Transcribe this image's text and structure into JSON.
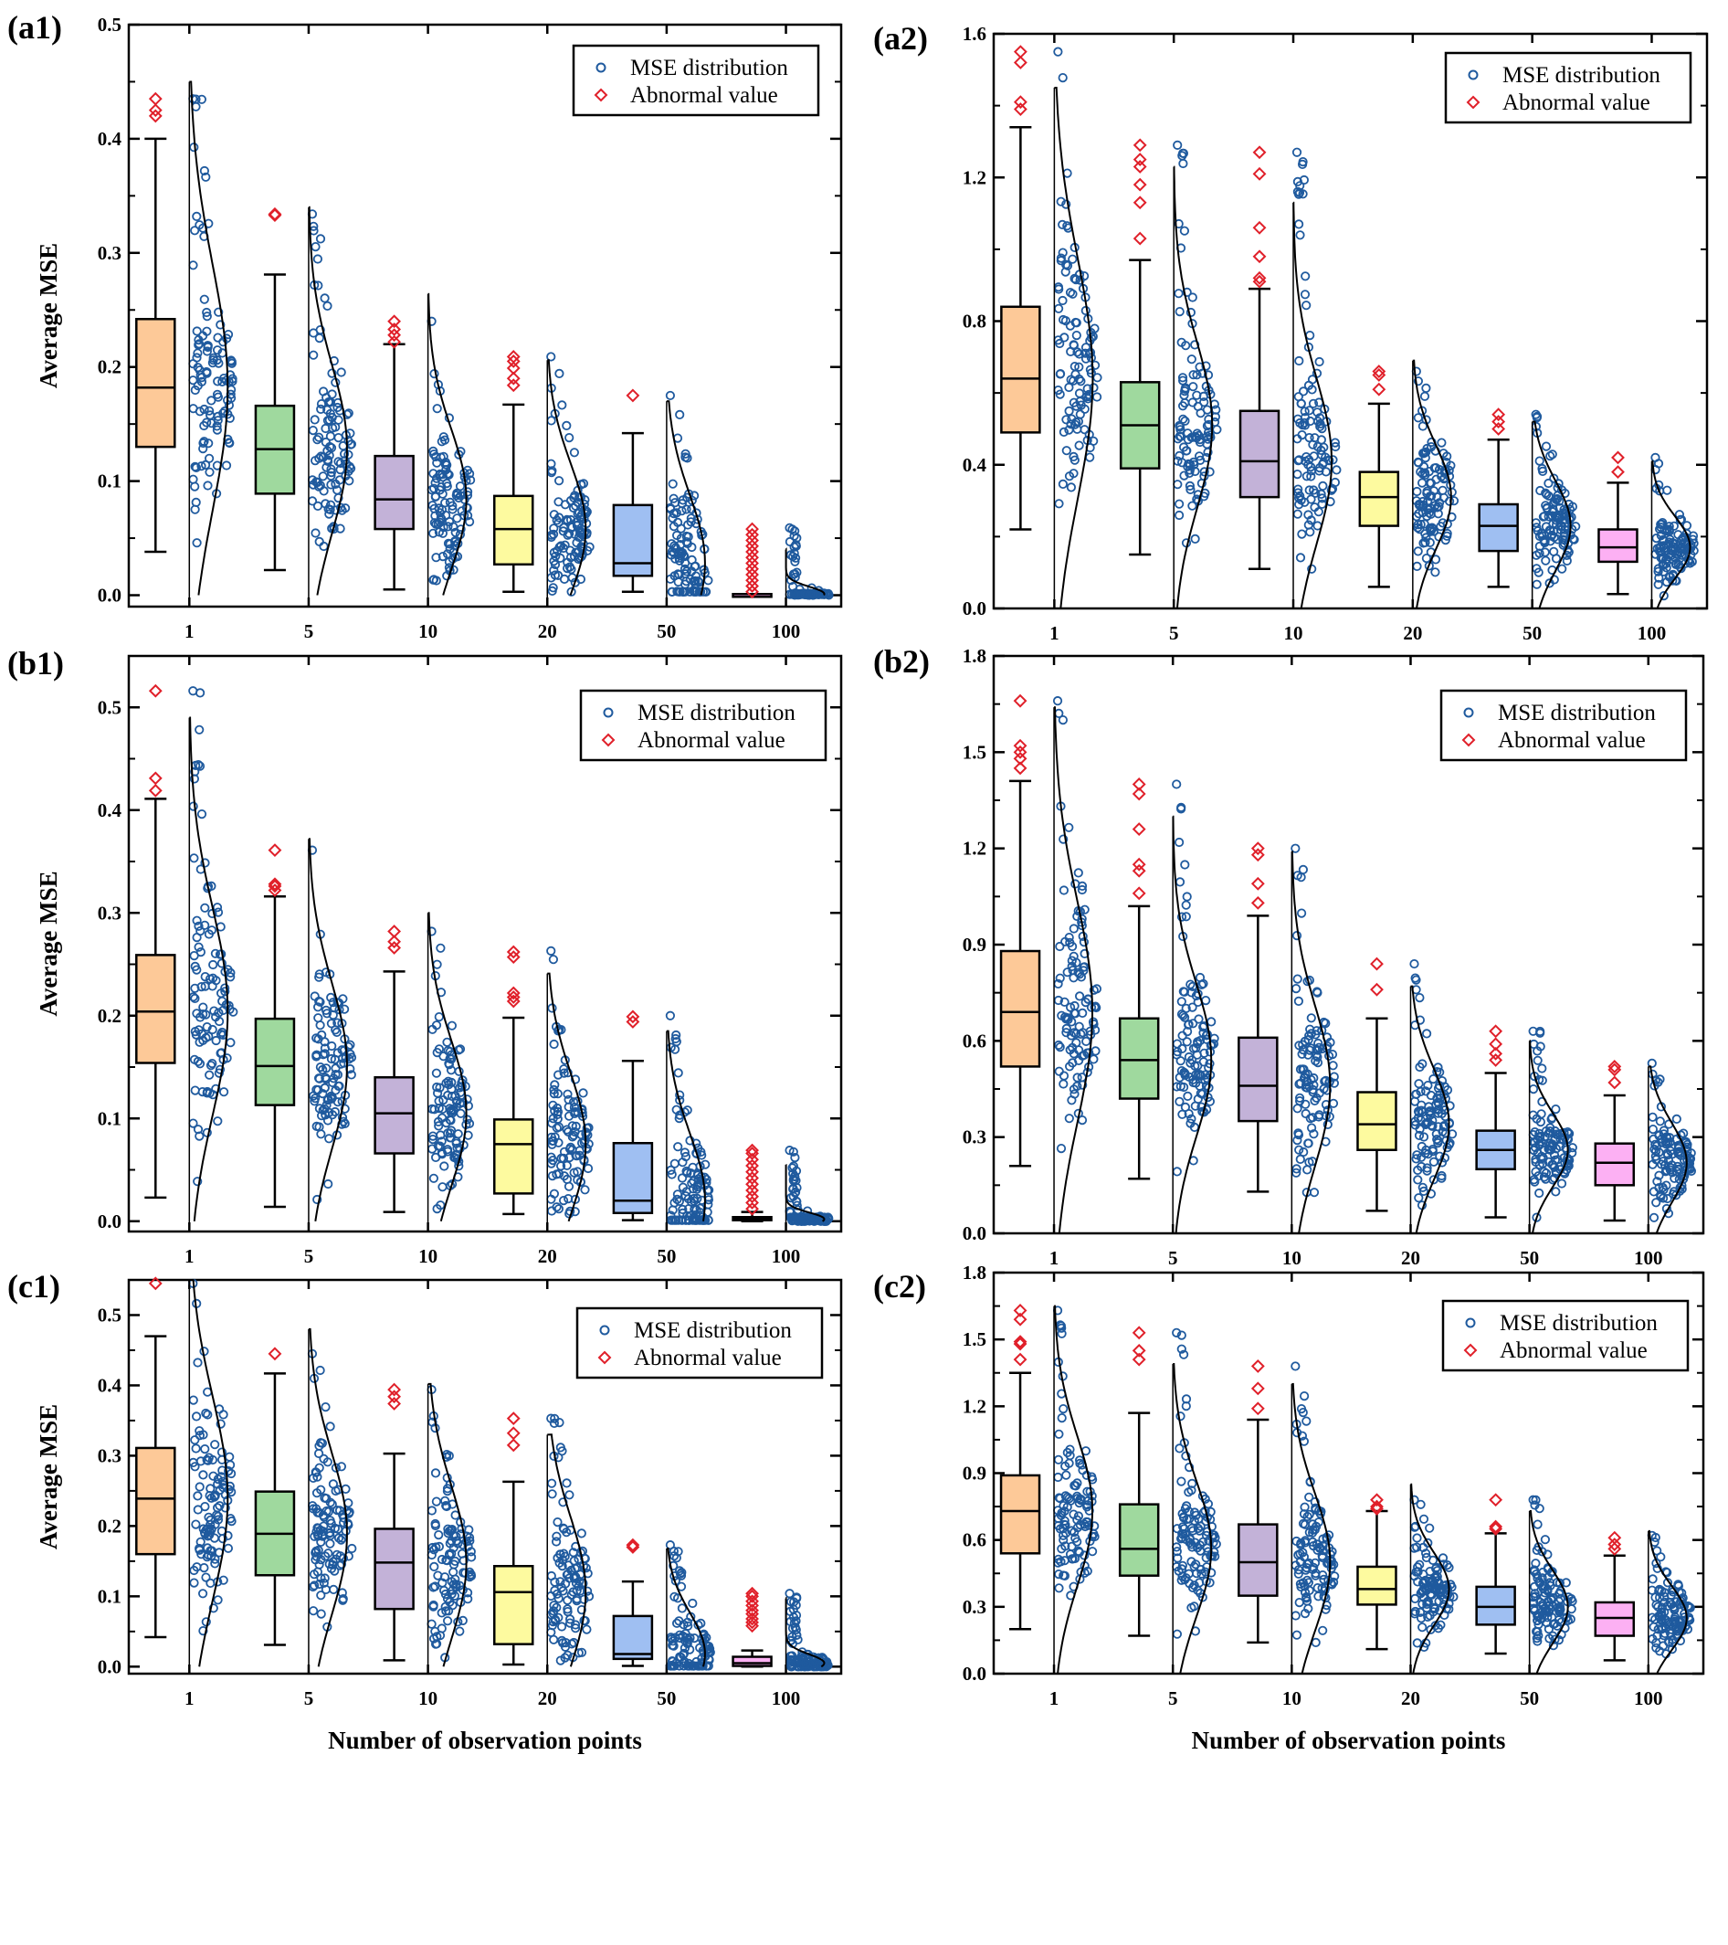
{
  "figure": {
    "shared_xlabel": "Number of observation points",
    "shared_ylabel": "Average MSE"
  },
  "legend": {
    "entries": [
      {
        "label": "MSE distribution",
        "marker": "open-circle",
        "color": "#1f5a9e"
      },
      {
        "label": "Abnormal value",
        "marker": "open-diamond",
        "color": "#e0202a"
      }
    ]
  },
  "colors": {
    "box_fills": [
      "#fdc998",
      "#9fd99e",
      "#c3b2d8",
      "#fdfa9f",
      "#9fbff2",
      "#fcb0f3"
    ],
    "points": "#1f5a9e",
    "outliers": "#e0202a",
    "curve": "#000000"
  },
  "chart_data": [
    {
      "id": "a1",
      "panel_label": "(a1)",
      "type": "box",
      "title": "",
      "xlabel": "",
      "ylabel": "Average MSE",
      "categories": [
        "1",
        "5",
        "10",
        "20",
        "50",
        "100"
      ],
      "ylim": [
        -0.01,
        0.5
      ],
      "yticks": [
        0.0,
        0.1,
        0.2,
        0.3,
        0.4,
        0.5
      ],
      "ytick_labels": [
        "0.0",
        "0.1",
        "0.2",
        "0.3",
        "0.4",
        "0.5"
      ],
      "minor_yticks": true,
      "legend_position": "top-right",
      "series": [
        {
          "category": "1",
          "whisker_low": 0.038,
          "q1": 0.13,
          "median": 0.182,
          "q3": 0.242,
          "whisker_high": 0.4,
          "outliers": [
            0.42,
            0.425,
            0.435
          ],
          "dist_range": [
            0.037,
            0.435
          ],
          "curve_top": 0.45
        },
        {
          "category": "5",
          "whisker_low": 0.022,
          "q1": 0.089,
          "median": 0.128,
          "q3": 0.166,
          "whisker_high": 0.281,
          "outliers": [
            0.333,
            0.334
          ],
          "dist_range": [
            0.022,
            0.334
          ],
          "curve_top": 0.34
        },
        {
          "category": "10",
          "whisker_low": 0.005,
          "q1": 0.058,
          "median": 0.084,
          "q3": 0.122,
          "whisker_high": 0.22,
          "outliers": [
            0.222,
            0.228,
            0.233,
            0.24
          ],
          "dist_range": [
            0.005,
            0.24
          ],
          "curve_top": 0.264
        },
        {
          "category": "20",
          "whisker_low": 0.003,
          "q1": 0.027,
          "median": 0.058,
          "q3": 0.087,
          "whisker_high": 0.167,
          "outliers": [
            0.184,
            0.19,
            0.199,
            0.205,
            0.209
          ],
          "dist_range": [
            0.003,
            0.209
          ],
          "curve_top": 0.206
        },
        {
          "category": "50",
          "whisker_low": 0.003,
          "q1": 0.017,
          "median": 0.028,
          "q3": 0.079,
          "whisker_high": 0.142,
          "outliers": [
            0.175
          ],
          "dist_range": [
            0.003,
            0.175
          ],
          "curve_top": 0.17
        },
        {
          "category": "100",
          "whisker_low": 0.0,
          "q1": 0.0,
          "median": 0.001,
          "q3": 0.001,
          "whisker_high": 0.001,
          "outliers": [
            0.003,
            0.008,
            0.013,
            0.018,
            0.023,
            0.028,
            0.033,
            0.038,
            0.043,
            0.048,
            0.053,
            0.058
          ],
          "dist_range": [
            0.0,
            0.059
          ],
          "curve_top": 0.04
        }
      ]
    },
    {
      "id": "a2",
      "panel_label": "(a2)",
      "type": "box",
      "title": "",
      "xlabel": "",
      "ylabel": "",
      "categories": [
        "1",
        "5",
        "10",
        "20",
        "50",
        "100"
      ],
      "ylim": [
        0.0,
        1.6
      ],
      "yticks": [
        0.0,
        0.4,
        0.8,
        1.2,
        1.6
      ],
      "ytick_labels": [
        "0.0",
        "0.4",
        "0.8",
        "1.2",
        "1.6"
      ],
      "minor_yticks": true,
      "legend_position": "top-right",
      "series": [
        {
          "category": "1",
          "whisker_low": 0.22,
          "q1": 0.49,
          "median": 0.64,
          "q3": 0.84,
          "whisker_high": 1.34,
          "outliers": [
            1.39,
            1.41,
            1.52,
            1.55
          ],
          "dist_range": [
            0.22,
            1.55
          ],
          "curve_top": 1.45
        },
        {
          "category": "5",
          "whisker_low": 0.15,
          "q1": 0.39,
          "median": 0.51,
          "q3": 0.63,
          "whisker_high": 0.97,
          "outliers": [
            1.03,
            1.13,
            1.18,
            1.23,
            1.25,
            1.29
          ],
          "dist_range": [
            0.15,
            1.29
          ],
          "curve_top": 1.23
        },
        {
          "category": "10",
          "whisker_low": 0.11,
          "q1": 0.31,
          "median": 0.41,
          "q3": 0.55,
          "whisker_high": 0.89,
          "outliers": [
            0.91,
            0.92,
            0.98,
            1.06,
            1.21,
            1.27
          ],
          "dist_range": [
            0.11,
            1.27
          ],
          "curve_top": 1.13
        },
        {
          "category": "20",
          "whisker_low": 0.06,
          "q1": 0.23,
          "median": 0.31,
          "q3": 0.38,
          "whisker_high": 0.57,
          "outliers": [
            0.61,
            0.65,
            0.66
          ],
          "dist_range": [
            0.06,
            0.66
          ],
          "curve_top": 0.69
        },
        {
          "category": "50",
          "whisker_low": 0.06,
          "q1": 0.16,
          "median": 0.23,
          "q3": 0.29,
          "whisker_high": 0.47,
          "outliers": [
            0.5,
            0.52,
            0.54
          ],
          "dist_range": [
            0.06,
            0.54
          ],
          "curve_top": 0.52
        },
        {
          "category": "100",
          "whisker_low": 0.04,
          "q1": 0.13,
          "median": 0.17,
          "q3": 0.22,
          "whisker_high": 0.35,
          "outliers": [
            0.38,
            0.42
          ],
          "dist_range": [
            0.03,
            0.42
          ],
          "curve_top": 0.41
        }
      ]
    },
    {
      "id": "b1",
      "panel_label": "(b1)",
      "type": "box",
      "title": "",
      "xlabel": "",
      "ylabel": "Average MSE",
      "categories": [
        "1",
        "5",
        "10",
        "20",
        "50",
        "100"
      ],
      "ylim": [
        -0.01,
        0.55
      ],
      "yticks": [
        0.0,
        0.1,
        0.2,
        0.3,
        0.4,
        0.5
      ],
      "ytick_labels": [
        "0.0",
        "0.1",
        "0.2",
        "0.3",
        "0.4",
        "0.5"
      ],
      "minor_yticks": true,
      "legend_position": "top-right",
      "series": [
        {
          "category": "1",
          "whisker_low": 0.023,
          "q1": 0.154,
          "median": 0.204,
          "q3": 0.259,
          "whisker_high": 0.411,
          "outliers": [
            0.419,
            0.431,
            0.516
          ],
          "dist_range": [
            0.023,
            0.516
          ],
          "curve_top": 0.49
        },
        {
          "category": "5",
          "whisker_low": 0.014,
          "q1": 0.113,
          "median": 0.151,
          "q3": 0.197,
          "whisker_high": 0.316,
          "outliers": [
            0.322,
            0.326,
            0.328,
            0.361
          ],
          "dist_range": [
            0.014,
            0.361
          ],
          "curve_top": 0.372
        },
        {
          "category": "10",
          "whisker_low": 0.009,
          "q1": 0.066,
          "median": 0.105,
          "q3": 0.14,
          "whisker_high": 0.243,
          "outliers": [
            0.266,
            0.272,
            0.282
          ],
          "dist_range": [
            0.009,
            0.282
          ],
          "curve_top": 0.3
        },
        {
          "category": "20",
          "whisker_low": 0.007,
          "q1": 0.027,
          "median": 0.075,
          "q3": 0.099,
          "whisker_high": 0.198,
          "outliers": [
            0.214,
            0.218,
            0.222,
            0.257,
            0.262
          ],
          "dist_range": [
            0.007,
            0.263
          ],
          "curve_top": 0.241
        },
        {
          "category": "50",
          "whisker_low": 0.001,
          "q1": 0.008,
          "median": 0.02,
          "q3": 0.076,
          "whisker_high": 0.156,
          "outliers": [
            0.194,
            0.199
          ],
          "dist_range": [
            0.001,
            0.2
          ],
          "curve_top": 0.185
        },
        {
          "category": "100",
          "whisker_low": 0.0,
          "q1": 0.001,
          "median": 0.002,
          "q3": 0.004,
          "whisker_high": 0.009,
          "outliers": [
            0.012,
            0.018,
            0.024,
            0.03,
            0.036,
            0.042,
            0.048,
            0.054,
            0.06,
            0.066,
            0.069
          ],
          "dist_range": [
            0.0,
            0.069
          ],
          "curve_top": 0.055
        }
      ]
    },
    {
      "id": "b2",
      "panel_label": "(b2)",
      "type": "box",
      "title": "",
      "xlabel": "",
      "ylabel": "",
      "categories": [
        "1",
        "5",
        "10",
        "20",
        "50",
        "100"
      ],
      "ylim": [
        0.0,
        1.8
      ],
      "yticks": [
        0.0,
        0.3,
        0.6,
        0.9,
        1.2,
        1.5,
        1.8
      ],
      "ytick_labels": [
        "0.0",
        "0.3",
        "0.6",
        "0.9",
        "1.2",
        "1.5",
        "1.8"
      ],
      "minor_yticks": true,
      "legend_position": "top-right",
      "series": [
        {
          "category": "1",
          "whisker_low": 0.21,
          "q1": 0.52,
          "median": 0.69,
          "q3": 0.88,
          "whisker_high": 1.41,
          "outliers": [
            1.45,
            1.48,
            1.5,
            1.52,
            1.66
          ],
          "dist_range": [
            0.21,
            1.66
          ],
          "curve_top": 1.64
        },
        {
          "category": "5",
          "whisker_low": 0.17,
          "q1": 0.42,
          "median": 0.54,
          "q3": 0.67,
          "whisker_high": 1.02,
          "outliers": [
            1.06,
            1.13,
            1.15,
            1.26,
            1.37,
            1.4
          ],
          "dist_range": [
            0.17,
            1.4
          ],
          "curve_top": 1.3
        },
        {
          "category": "10",
          "whisker_low": 0.13,
          "q1": 0.35,
          "median": 0.46,
          "q3": 0.61,
          "whisker_high": 0.99,
          "outliers": [
            1.03,
            1.09,
            1.18,
            1.2
          ],
          "dist_range": [
            0.12,
            1.2
          ],
          "curve_top": 1.19
        },
        {
          "category": "20",
          "whisker_low": 0.07,
          "q1": 0.26,
          "median": 0.34,
          "q3": 0.44,
          "whisker_high": 0.67,
          "outliers": [
            0.76,
            0.84
          ],
          "dist_range": [
            0.07,
            0.84
          ],
          "curve_top": 0.77
        },
        {
          "category": "50",
          "whisker_low": 0.05,
          "q1": 0.2,
          "median": 0.26,
          "q3": 0.32,
          "whisker_high": 0.5,
          "outliers": [
            0.54,
            0.56,
            0.59,
            0.63
          ],
          "dist_range": [
            0.04,
            0.63
          ],
          "curve_top": 0.6
        },
        {
          "category": "100",
          "whisker_low": 0.04,
          "q1": 0.15,
          "median": 0.22,
          "q3": 0.28,
          "whisker_high": 0.43,
          "outliers": [
            0.47,
            0.51,
            0.52
          ],
          "dist_range": [
            0.03,
            0.53
          ],
          "curve_top": 0.52
        }
      ]
    },
    {
      "id": "c1",
      "panel_label": "(c1)",
      "type": "box",
      "title": "",
      "xlabel": "Number of observation points",
      "ylabel": "Average MSE",
      "categories": [
        "1",
        "5",
        "10",
        "20",
        "50",
        "100"
      ],
      "ylim": [
        -0.01,
        0.55
      ],
      "yticks": [
        0.0,
        0.1,
        0.2,
        0.3,
        0.4,
        0.5
      ],
      "ytick_labels": [
        "0.0",
        "0.1",
        "0.2",
        "0.3",
        "0.4",
        "0.5"
      ],
      "minor_yticks": true,
      "legend_position": "top-right",
      "series": [
        {
          "category": "1",
          "whisker_low": 0.042,
          "q1": 0.16,
          "median": 0.239,
          "q3": 0.311,
          "whisker_high": 0.47,
          "outliers": [
            0.545
          ],
          "dist_range": [
            0.042,
            0.545
          ],
          "curve_top": 0.55
        },
        {
          "category": "5",
          "whisker_low": 0.031,
          "q1": 0.13,
          "median": 0.189,
          "q3": 0.249,
          "whisker_high": 0.417,
          "outliers": [
            0.445
          ],
          "dist_range": [
            0.031,
            0.445
          ],
          "curve_top": 0.48
        },
        {
          "category": "10",
          "whisker_low": 0.009,
          "q1": 0.082,
          "median": 0.148,
          "q3": 0.196,
          "whisker_high": 0.303,
          "outliers": [
            0.374,
            0.384,
            0.394
          ],
          "dist_range": [
            0.009,
            0.394
          ],
          "curve_top": 0.402
        },
        {
          "category": "20",
          "whisker_low": 0.003,
          "q1": 0.032,
          "median": 0.106,
          "q3": 0.143,
          "whisker_high": 0.263,
          "outliers": [
            0.315,
            0.332,
            0.353
          ],
          "dist_range": [
            0.003,
            0.353
          ],
          "curve_top": 0.33
        },
        {
          "category": "50",
          "whisker_low": 0.001,
          "q1": 0.011,
          "median": 0.018,
          "q3": 0.072,
          "whisker_high": 0.121,
          "outliers": [
            0.17,
            0.173
          ],
          "dist_range": [
            0.001,
            0.173
          ],
          "curve_top": 0.168
        },
        {
          "category": "100",
          "whisker_low": 0.0,
          "q1": 0.001,
          "median": 0.005,
          "q3": 0.014,
          "whisker_high": 0.023,
          "outliers": [
            0.058,
            0.063,
            0.068,
            0.075,
            0.08,
            0.087,
            0.093,
            0.1,
            0.104
          ],
          "dist_range": [
            0.0,
            0.104
          ],
          "curve_top": 0.097
        }
      ]
    },
    {
      "id": "c2",
      "panel_label": "(c2)",
      "type": "box",
      "title": "",
      "xlabel": "Number of observation points",
      "ylabel": "",
      "categories": [
        "1",
        "5",
        "10",
        "20",
        "50",
        "100"
      ],
      "ylim": [
        0.0,
        1.8
      ],
      "yticks": [
        0.0,
        0.3,
        0.6,
        0.9,
        1.2,
        1.5,
        1.8
      ],
      "ytick_labels": [
        "0.0",
        "0.3",
        "0.6",
        "0.9",
        "1.2",
        "1.5",
        "1.8"
      ],
      "minor_yticks": true,
      "legend_position": "top-right",
      "series": [
        {
          "category": "1",
          "whisker_low": 0.2,
          "q1": 0.54,
          "median": 0.73,
          "q3": 0.89,
          "whisker_high": 1.35,
          "outliers": [
            1.41,
            1.48,
            1.49,
            1.59,
            1.63
          ],
          "dist_range": [
            0.2,
            1.63
          ],
          "curve_top": 1.65
        },
        {
          "category": "5",
          "whisker_low": 0.17,
          "q1": 0.44,
          "median": 0.56,
          "q3": 0.76,
          "whisker_high": 1.17,
          "outliers": [
            1.41,
            1.45,
            1.53
          ],
          "dist_range": [
            0.17,
            1.53
          ],
          "curve_top": 1.39
        },
        {
          "category": "10",
          "whisker_low": 0.14,
          "q1": 0.35,
          "median": 0.5,
          "q3": 0.67,
          "whisker_high": 1.14,
          "outliers": [
            1.19,
            1.28,
            1.38
          ],
          "dist_range": [
            0.14,
            1.38
          ],
          "curve_top": 1.3
        },
        {
          "category": "20",
          "whisker_low": 0.11,
          "q1": 0.31,
          "median": 0.38,
          "q3": 0.48,
          "whisker_high": 0.73,
          "outliers": [
            0.74,
            0.75,
            0.78
          ],
          "dist_range": [
            0.11,
            0.78
          ],
          "curve_top": 0.85
        },
        {
          "category": "50",
          "whisker_low": 0.09,
          "q1": 0.22,
          "median": 0.3,
          "q3": 0.39,
          "whisker_high": 0.63,
          "outliers": [
            0.65,
            0.66,
            0.78
          ],
          "dist_range": [
            0.08,
            0.78
          ],
          "curve_top": 0.73
        },
        {
          "category": "100",
          "whisker_low": 0.06,
          "q1": 0.17,
          "median": 0.25,
          "q3": 0.32,
          "whisker_high": 0.53,
          "outliers": [
            0.56,
            0.58,
            0.61
          ],
          "dist_range": [
            0.05,
            0.62
          ],
          "curve_top": 0.64
        }
      ]
    }
  ]
}
